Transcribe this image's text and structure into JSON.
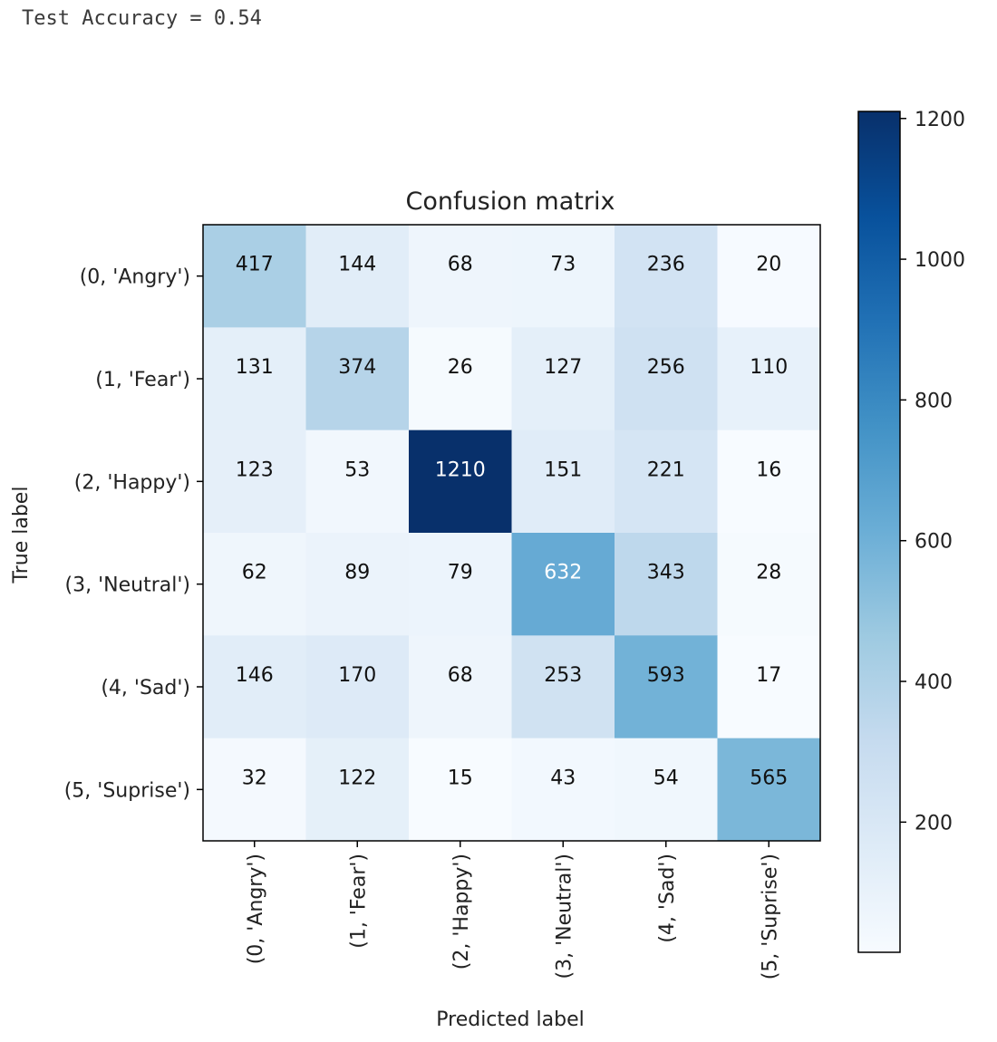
{
  "output_text": "Test Accuracy = 0.54",
  "chart_data": {
    "type": "heatmap",
    "title": "Confusion matrix",
    "xlabel": "Predicted label",
    "ylabel": "True label",
    "row_labels": [
      "(0, 'Angry')",
      "(1, 'Fear')",
      "(2, 'Happy')",
      "(3, 'Neutral')",
      "(4, 'Sad')",
      "(5, 'Suprise')"
    ],
    "col_labels": [
      "(0, 'Angry')",
      "(1, 'Fear')",
      "(2, 'Happy')",
      "(3, 'Neutral')",
      "(4, 'Sad')",
      "(5, 'Suprise')"
    ],
    "matrix": [
      [
        417,
        144,
        68,
        73,
        236,
        20
      ],
      [
        131,
        374,
        26,
        127,
        256,
        110
      ],
      [
        123,
        53,
        1210,
        151,
        221,
        16
      ],
      [
        62,
        89,
        79,
        632,
        343,
        28
      ],
      [
        146,
        170,
        68,
        253,
        593,
        17
      ],
      [
        32,
        122,
        15,
        43,
        54,
        565
      ]
    ],
    "colormap": "Blues",
    "colorbar": {
      "min": 15,
      "max": 1210,
      "ticks": [
        200,
        400,
        600,
        800,
        1000,
        1200
      ]
    },
    "grid": false,
    "legend": "colorbar-right"
  }
}
